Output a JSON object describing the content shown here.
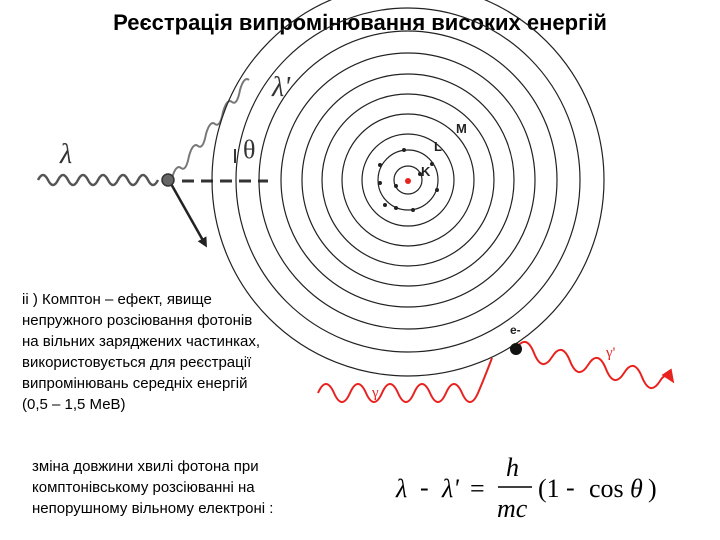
{
  "title": "Реєстрація випромінювання високих енергій",
  "compton_diagram": {
    "incident_label": "λ",
    "scattered_label": "λ'",
    "angle_label": "θ"
  },
  "atom_diagram": {
    "shell_k": "K",
    "shell_l": "L",
    "shell_m": "M",
    "electron_label": "e-",
    "gamma_in": "γ",
    "gamma_out": "γ'",
    "colors": {
      "photon": "#e8231f",
      "shell": "#222222"
    }
  },
  "paragraph1": [
    "ii ) Комптон – ефект, явище",
    "непружного розсіювання фотонів",
    "на вільних заряджених частинках,",
    "використовується для реєстрації",
    "випромінювань середніх енергій",
    "(0,5 – 1,5 МеВ)"
  ],
  "paragraph2": [
    "зміна довжини хвилі фотона при",
    "комптонівському розсіюванні на",
    "непорушному вільному електроні :"
  ],
  "formula": {
    "lambda": "λ",
    "minus": "-",
    "lambda_prime": "λ'",
    "equals": "=",
    "numerator": "h",
    "denominator": "mc",
    "open": "(1",
    "minus2": "-",
    "cos": "cos",
    "theta": "θ",
    "close": ")"
  }
}
